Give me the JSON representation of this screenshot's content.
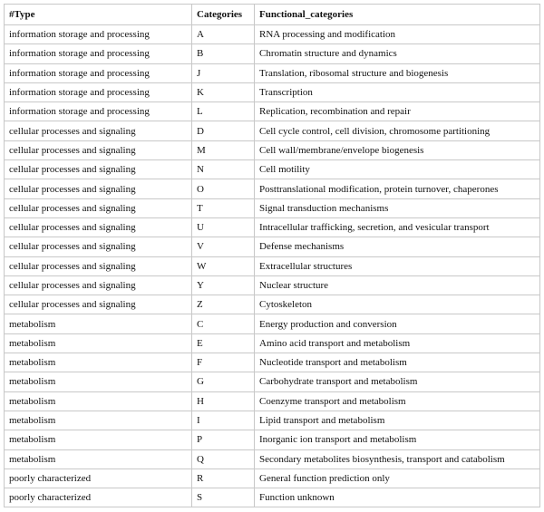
{
  "table": {
    "header": [
      "#Type",
      "Categories",
      "Functional_categories"
    ],
    "rows": [
      [
        "information storage and processing",
        "A",
        "RNA processing and modification"
      ],
      [
        "information storage and processing",
        "B",
        "Chromatin structure and dynamics"
      ],
      [
        "information storage and processing",
        "J",
        "Translation, ribosomal structure and biogenesis"
      ],
      [
        "information storage and processing",
        "K",
        "Transcription"
      ],
      [
        "information storage and processing",
        "L",
        "Replication, recombination and repair"
      ],
      [
        "cellular processes and signaling",
        "D",
        "Cell cycle control, cell division, chromosome partitioning"
      ],
      [
        "cellular processes and signaling",
        "M",
        "Cell wall/membrane/envelope biogenesis"
      ],
      [
        "cellular processes and signaling",
        "N",
        "Cell motility"
      ],
      [
        "cellular processes and signaling",
        "O",
        "Posttranslational modification, protein turnover, chaperones"
      ],
      [
        "cellular processes and signaling",
        "T",
        "Signal transduction mechanisms"
      ],
      [
        "cellular processes and signaling",
        "U",
        "Intracellular trafficking, secretion, and vesicular transport"
      ],
      [
        "cellular processes and signaling",
        "V",
        "Defense mechanisms"
      ],
      [
        "cellular processes and signaling",
        "W",
        "Extracellular structures"
      ],
      [
        "cellular processes and signaling",
        "Y",
        "Nuclear structure"
      ],
      [
        "cellular processes and signaling",
        "Z",
        "Cytoskeleton"
      ],
      [
        "metabolism",
        "C",
        "Energy production and conversion"
      ],
      [
        "metabolism",
        "E",
        "Amino acid transport and metabolism"
      ],
      [
        "metabolism",
        "F",
        "Nucleotide transport and metabolism"
      ],
      [
        "metabolism",
        "G",
        "Carbohydrate transport and metabolism"
      ],
      [
        "metabolism",
        "H",
        "Coenzyme transport and metabolism"
      ],
      [
        "metabolism",
        "I",
        "Lipid transport and metabolism"
      ],
      [
        "metabolism",
        "P",
        "Inorganic ion transport and metabolism"
      ],
      [
        "metabolism",
        "Q",
        "Secondary metabolites biosynthesis, transport and catabolism"
      ],
      [
        "poorly characterized",
        "R",
        "General function prediction only"
      ],
      [
        "poorly characterized",
        "S",
        "Function unknown"
      ]
    ]
  }
}
